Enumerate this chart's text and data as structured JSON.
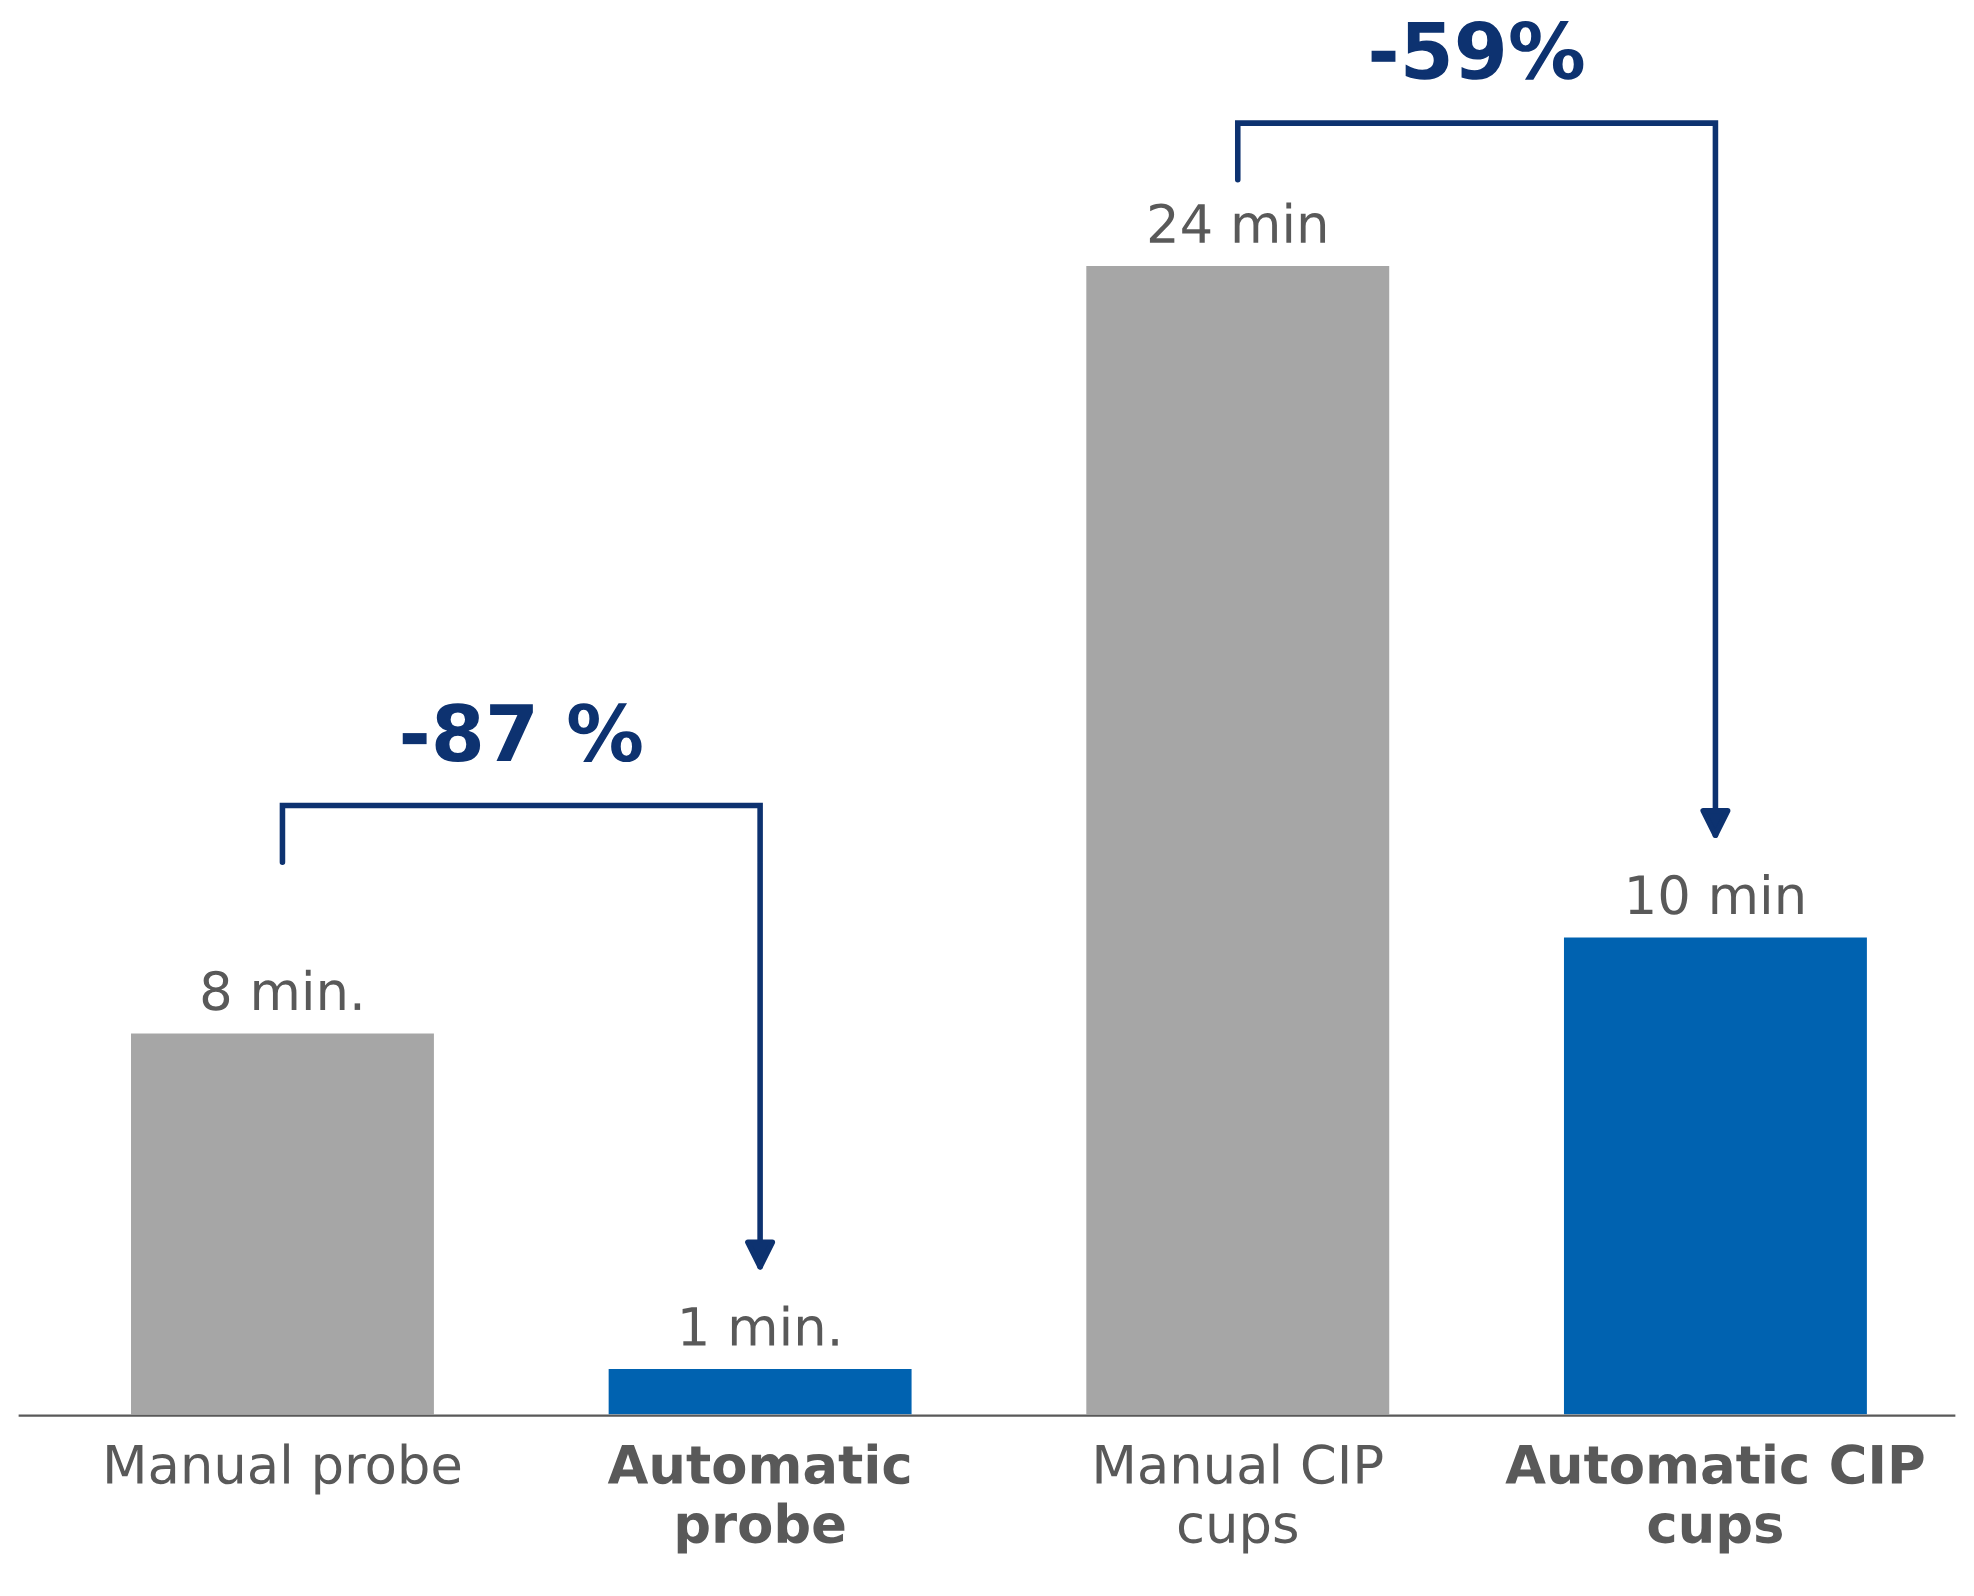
{
  "chart_data": {
    "type": "bar",
    "categories": [
      "Manual probe",
      "Automatic probe",
      "Manual CIP cups",
      "Automatic CIP cups"
    ],
    "values": [
      8,
      1,
      24,
      10
    ],
    "colors": [
      "#a6a6a6",
      "#0062b0",
      "#a6a6a6",
      "#0062b0"
    ],
    "value_labels": [
      "8 min.",
      "1 min.",
      "24 min",
      "10 min"
    ],
    "annotations": [
      "-87 %",
      "-59%"
    ],
    "grid": false,
    "legend": false
  }
}
